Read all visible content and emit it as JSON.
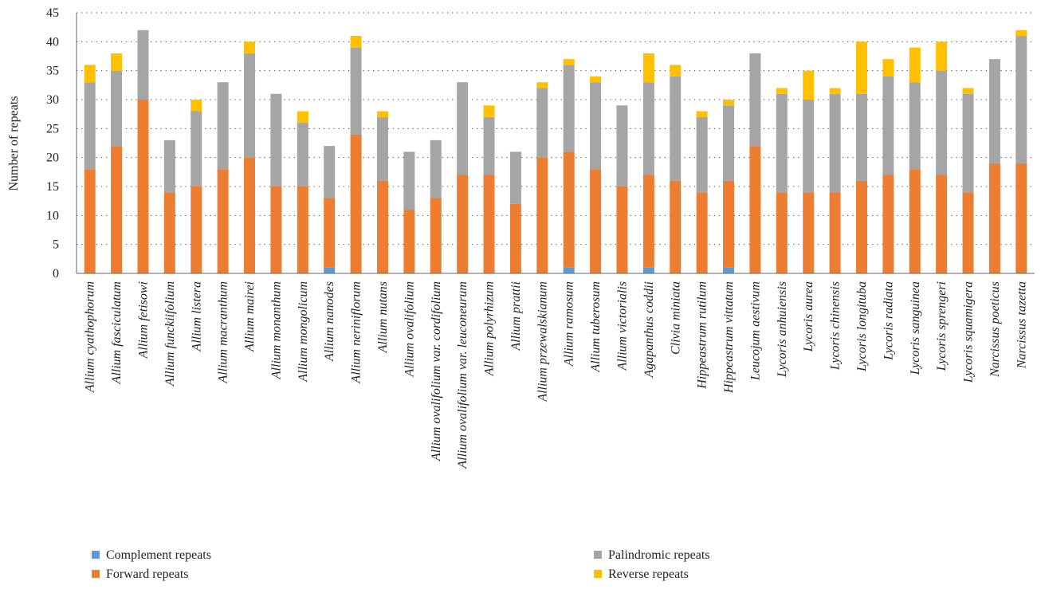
{
  "chart_data": {
    "type": "bar",
    "stacked": true,
    "ylabel": "Number of repeats",
    "xlabel": "",
    "ylim": [
      0,
      45
    ],
    "ytick_step": 5,
    "grid": "horizontal-dotted",
    "legend_position": "bottom",
    "categories": [
      "Allium cyathophorum",
      "Allium fasciculatum",
      "Allium fetisowi",
      "Allium funckiifolium",
      "Allium listera",
      "Allium macranthum",
      "Allium mairei",
      "Allium monanthum",
      "Allium mongolicum",
      "Allium nanodes",
      "Allium neriniflorum",
      "Allium nutans",
      "Allium ovalifolium",
      "Allium ovalifolium var. cordifolium",
      "Allium ovalifolium var. leuconeurum",
      "Allium polyrhizum",
      "Allium prattii",
      "Allium przewalskianum",
      "Allium ramosum",
      "Allium tuberosum",
      "Allium victorialis",
      "Agapanthus coddii",
      "Clivia miniata",
      "Hippeastrum rutilum",
      "Hippeastrum vittatum",
      "Leucojum aestivum",
      "Lycoris anhuiensis",
      "Lycoris aurea",
      "Lycoris chinensis",
      "Lycoris longituba",
      "Lycoris radiata",
      "Lycoris sanguinea",
      "Lycoris sprengeri",
      "Lycoris squamigera",
      "Narcissus poeticus",
      "Narcissus tazetta"
    ],
    "series": [
      {
        "name": "Complement repeats",
        "color": "#5b9bd5",
        "values": [
          0,
          0,
          0,
          0,
          0,
          0,
          0,
          0,
          0,
          1,
          0,
          0,
          0,
          0,
          0,
          0,
          0,
          0,
          1,
          0,
          0,
          1,
          0,
          0,
          1,
          0,
          0,
          0,
          0,
          0,
          0,
          0,
          0,
          0,
          0,
          0
        ]
      },
      {
        "name": "Forward repeats",
        "color": "#ed7d31",
        "values": [
          18,
          22,
          30,
          14,
          15,
          18,
          20,
          15,
          15,
          12,
          24,
          16,
          11,
          13,
          17,
          17,
          12,
          20,
          20,
          18,
          15,
          16,
          16,
          14,
          15,
          22,
          14,
          14,
          14,
          16,
          17,
          18,
          17,
          14,
          19,
          19
        ]
      },
      {
        "name": "Palindromic repeats",
        "color": "#a5a5a5",
        "values": [
          15,
          13,
          12,
          9,
          13,
          15,
          18,
          16,
          11,
          9,
          15,
          11,
          10,
          10,
          16,
          10,
          9,
          12,
          15,
          15,
          14,
          16,
          18,
          13,
          13,
          16,
          17,
          16,
          17,
          15,
          17,
          15,
          18,
          17,
          18,
          22
        ]
      },
      {
        "name": "Reverse repeats",
        "color": "#ffc000",
        "values": [
          3,
          3,
          0,
          0,
          2,
          0,
          2,
          0,
          2,
          0,
          2,
          1,
          0,
          0,
          0,
          2,
          0,
          1,
          1,
          1,
          0,
          5,
          2,
          1,
          1,
          0,
          1,
          5,
          1,
          9,
          3,
          6,
          5,
          1,
          0,
          1
        ]
      }
    ],
    "legend_order": [
      "Complement repeats",
      "Palindromic repeats",
      "Forward repeats",
      "Reverse repeats"
    ]
  }
}
